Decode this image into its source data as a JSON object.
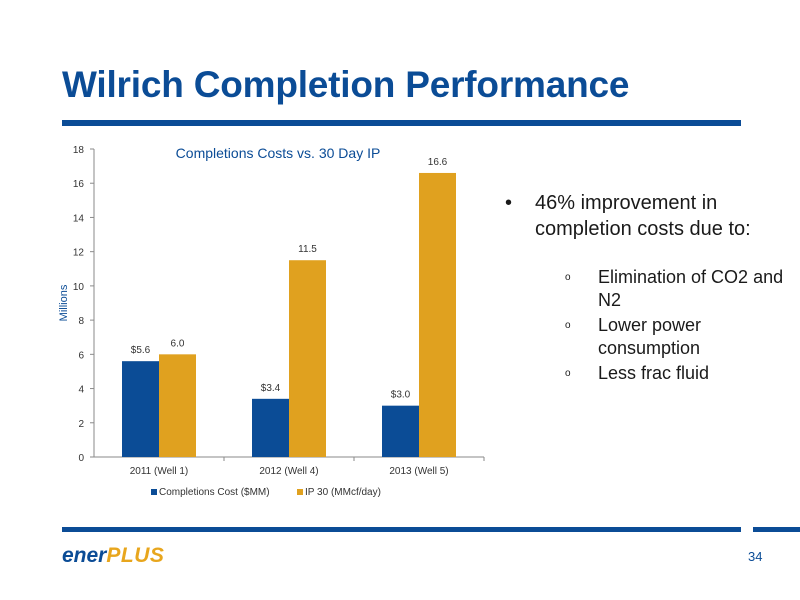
{
  "slide": {
    "title": "Wilrich Completion Performance",
    "page_number": "34",
    "logo": {
      "part1": "ener",
      "part2": "PLUS"
    }
  },
  "bullets": {
    "main_marker": "•",
    "main": "46% improvement in completion costs due to:",
    "sub_marker": "o",
    "sub": [
      "Elimination of CO2 and N2",
      "Lower power consumption",
      "Less frac fluid"
    ]
  },
  "colors": {
    "brand_blue": "#0b4c96",
    "gold": "#e0a11f",
    "series_blue": "#0b4c96"
  },
  "chart_data": {
    "type": "bar",
    "title": "Completions Costs vs. 30 Day IP",
    "ylabel": "Millions",
    "xlabel": "",
    "ylim": [
      0,
      18
    ],
    "yticks": [
      "0",
      "2",
      "4",
      "6",
      "8",
      "10",
      "12",
      "14",
      "16",
      "18"
    ],
    "categories": [
      "2011 (Well 1)",
      "2012 (Well 4)",
      "2013 (Well 5)"
    ],
    "series": [
      {
        "name": "Completions Cost ($MM)",
        "values": [
          5.6,
          3.4,
          3.0
        ],
        "labels": [
          "$5.6",
          "$3.4",
          "$3.0"
        ],
        "color": "#0b4c96"
      },
      {
        "name": "IP 30 (MMcf/day)",
        "values": [
          6.0,
          11.5,
          16.6
        ],
        "labels": [
          "6.0",
          "11.5",
          "16.6"
        ],
        "color": "#e0a11f"
      }
    ],
    "legend_position": "bottom",
    "grid": false
  }
}
